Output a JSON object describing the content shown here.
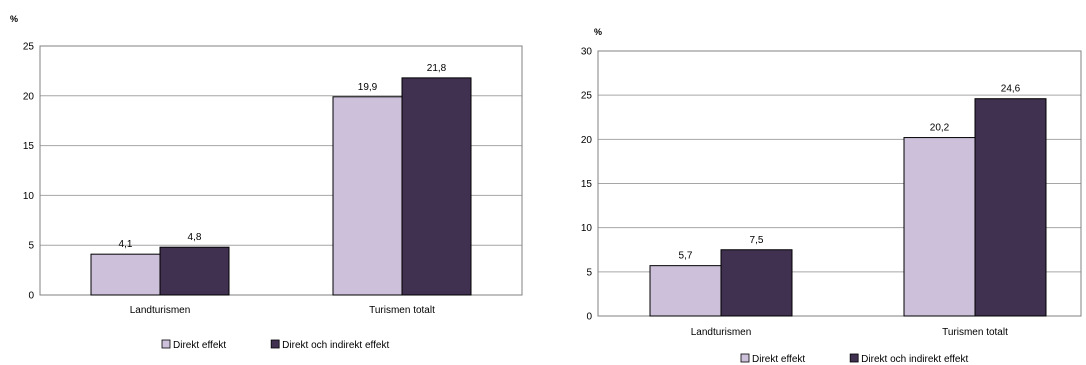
{
  "chart_data": [
    {
      "type": "bar",
      "ylabel": "%",
      "ylim": [
        0,
        25
      ],
      "yticks": [
        0,
        5,
        10,
        15,
        20,
        25
      ],
      "grid": true,
      "categories": [
        "Landturismen",
        "Turismen totalt"
      ],
      "series": [
        {
          "name": "Direkt effekt",
          "color": "#ccc0da",
          "values": [
            4.1,
            19.9
          ],
          "labels": [
            "4,1",
            "19,9"
          ]
        },
        {
          "name": "Direkt och indirekt effekt",
          "color": "#403151",
          "values": [
            4.8,
            21.8
          ],
          "labels": [
            "4,8",
            "21,8"
          ]
        }
      ],
      "legend_position": "bottom"
    },
    {
      "type": "bar",
      "ylabel": "%",
      "ylim": [
        0,
        30
      ],
      "yticks": [
        0,
        5,
        10,
        15,
        20,
        25,
        30
      ],
      "grid": true,
      "categories": [
        "Landturismen",
        "Turismen totalt"
      ],
      "series": [
        {
          "name": "Direkt effekt",
          "color": "#ccc0da",
          "values": [
            5.7,
            20.2
          ],
          "labels": [
            "5,7",
            "20,2"
          ]
        },
        {
          "name": "Direkt och indirekt effekt",
          "color": "#403151",
          "values": [
            7.5,
            24.6
          ],
          "labels": [
            "7,5",
            "24,6"
          ]
        }
      ],
      "legend_position": "bottom"
    }
  ]
}
